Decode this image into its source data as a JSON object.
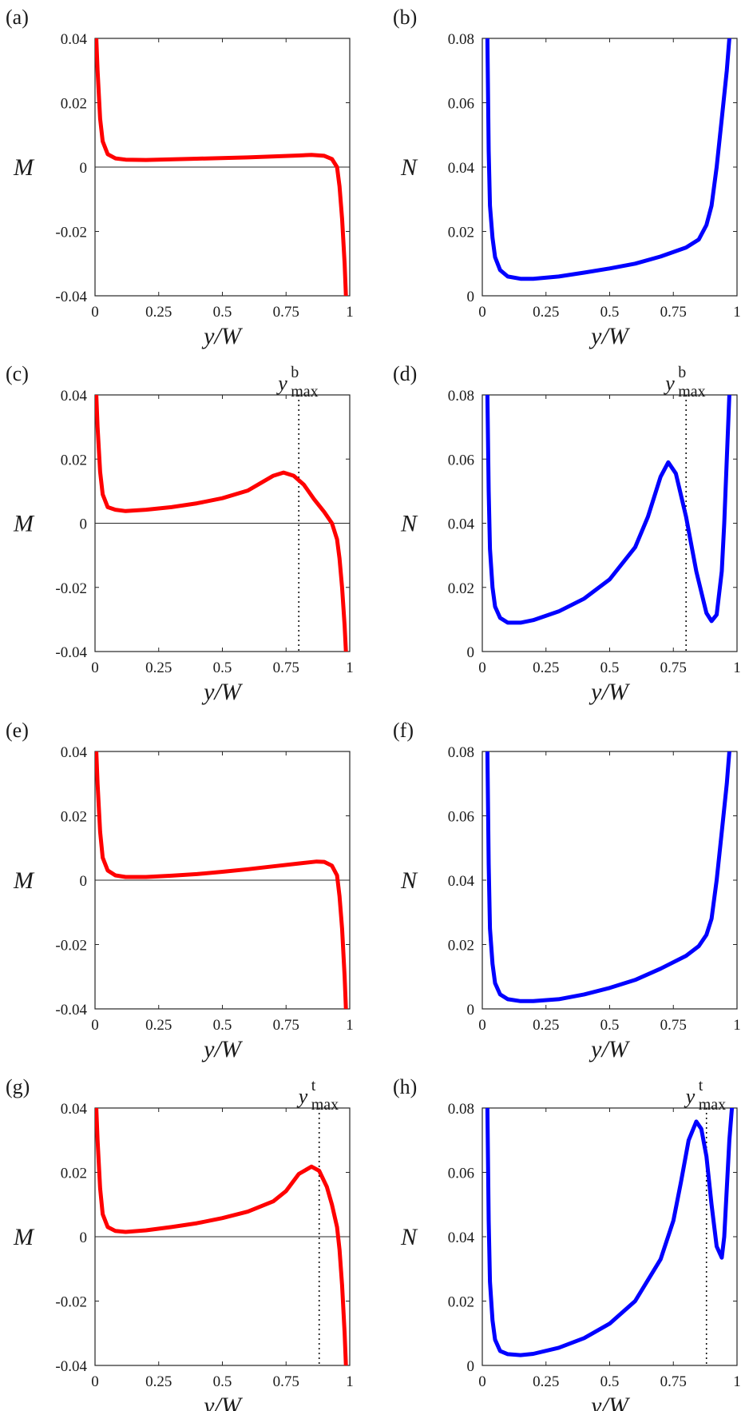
{
  "chart_data": [
    {
      "panel": "(a)",
      "type": "line",
      "xlabel": "y/W",
      "ylabel": "M",
      "xlim": [
        0,
        1
      ],
      "ylim": [
        -0.04,
        0.04
      ],
      "xticks": [
        "0",
        "0.25",
        "0.5",
        "0.75",
        "1"
      ],
      "yticks": [
        "-0.04",
        "-0.02",
        "0",
        "0.02",
        "0.04"
      ],
      "color": "#ff0000",
      "zero_line": true,
      "series": [
        {
          "name": "M",
          "x": [
            0.005,
            0.01,
            0.02,
            0.03,
            0.05,
            0.08,
            0.12,
            0.2,
            0.4,
            0.6,
            0.8,
            0.85,
            0.9,
            0.93,
            0.95,
            0.96,
            0.97,
            0.98,
            0.985
          ],
          "y": [
            0.04,
            0.03,
            0.015,
            0.008,
            0.004,
            0.0027,
            0.0023,
            0.0022,
            0.0026,
            0.003,
            0.0036,
            0.0038,
            0.0035,
            0.0025,
            0.0,
            -0.006,
            -0.016,
            -0.03,
            -0.04
          ]
        }
      ]
    },
    {
      "panel": "(b)",
      "type": "line",
      "xlabel": "y/W",
      "ylabel": "N",
      "xlim": [
        0,
        1
      ],
      "ylim": [
        0,
        0.08
      ],
      "xticks": [
        "0",
        "0.25",
        "0.5",
        "0.75",
        "1"
      ],
      "yticks": [
        "0",
        "0.02",
        "0.04",
        "0.06",
        "0.08"
      ],
      "color": "#0000ff",
      "zero_line": false,
      "series": [
        {
          "name": "N",
          "x": [
            0.02,
            0.025,
            0.03,
            0.04,
            0.05,
            0.07,
            0.1,
            0.15,
            0.2,
            0.3,
            0.4,
            0.5,
            0.6,
            0.7,
            0.8,
            0.85,
            0.88,
            0.9,
            0.92,
            0.94,
            0.96,
            0.97
          ],
          "y": [
            0.08,
            0.045,
            0.028,
            0.018,
            0.012,
            0.008,
            0.006,
            0.0053,
            0.0053,
            0.006,
            0.0072,
            0.0085,
            0.01,
            0.0122,
            0.015,
            0.0175,
            0.022,
            0.028,
            0.04,
            0.055,
            0.07,
            0.08
          ]
        }
      ]
    },
    {
      "panel": "(c)",
      "type": "line",
      "xlabel": "y/W",
      "ylabel": "M",
      "xlim": [
        0,
        1
      ],
      "ylim": [
        -0.04,
        0.04
      ],
      "xticks": [
        "0",
        "0.25",
        "0.5",
        "0.75",
        "1"
      ],
      "yticks": [
        "-0.04",
        "-0.02",
        "0",
        "0.02",
        "0.04"
      ],
      "color": "#ff0000",
      "zero_line": true,
      "marker_x": 0.8,
      "marker_label": "y",
      "marker_sup": "b",
      "marker_sub": "max",
      "series": [
        {
          "name": "M",
          "x": [
            0.005,
            0.01,
            0.02,
            0.03,
            0.05,
            0.08,
            0.12,
            0.2,
            0.3,
            0.4,
            0.5,
            0.6,
            0.65,
            0.7,
            0.74,
            0.78,
            0.82,
            0.86,
            0.9,
            0.93,
            0.95,
            0.96,
            0.97,
            0.98,
            0.985
          ],
          "y": [
            0.04,
            0.03,
            0.016,
            0.009,
            0.005,
            0.0042,
            0.0038,
            0.0042,
            0.005,
            0.0062,
            0.0078,
            0.0102,
            0.0125,
            0.0148,
            0.0158,
            0.0148,
            0.012,
            0.0075,
            0.0035,
            0.0,
            -0.005,
            -0.011,
            -0.02,
            -0.032,
            -0.04
          ]
        }
      ]
    },
    {
      "panel": "(d)",
      "type": "line",
      "xlabel": "y/W",
      "ylabel": "N",
      "xlim": [
        0,
        1
      ],
      "ylim": [
        0,
        0.08
      ],
      "xticks": [
        "0",
        "0.25",
        "0.5",
        "0.75",
        "1"
      ],
      "yticks": [
        "0",
        "0.02",
        "0.04",
        "0.06",
        "0.08"
      ],
      "color": "#0000ff",
      "zero_line": false,
      "marker_x": 0.8,
      "marker_label": "y",
      "marker_sup": "b",
      "marker_sub": "max",
      "series": [
        {
          "name": "N",
          "x": [
            0.02,
            0.025,
            0.03,
            0.04,
            0.05,
            0.07,
            0.1,
            0.15,
            0.2,
            0.3,
            0.4,
            0.5,
            0.6,
            0.65,
            0.7,
            0.73,
            0.76,
            0.8,
            0.84,
            0.88,
            0.9,
            0.92,
            0.94,
            0.95,
            0.96,
            0.97
          ],
          "y": [
            0.08,
            0.05,
            0.032,
            0.02,
            0.014,
            0.0105,
            0.009,
            0.009,
            0.0098,
            0.0125,
            0.0165,
            0.0225,
            0.0325,
            0.042,
            0.0545,
            0.059,
            0.0555,
            0.042,
            0.025,
            0.012,
            0.0095,
            0.0115,
            0.025,
            0.04,
            0.06,
            0.08
          ]
        }
      ]
    },
    {
      "panel": "(e)",
      "type": "line",
      "xlabel": "y/W",
      "ylabel": "M",
      "xlim": [
        0,
        1
      ],
      "ylim": [
        -0.04,
        0.04
      ],
      "xticks": [
        "0",
        "0.25",
        "0.5",
        "0.75",
        "1"
      ],
      "yticks": [
        "-0.04",
        "-0.02",
        "0",
        "0.02",
        "0.04"
      ],
      "color": "#ff0000",
      "zero_line": true,
      "series": [
        {
          "name": "M",
          "x": [
            0.005,
            0.01,
            0.02,
            0.03,
            0.05,
            0.08,
            0.12,
            0.2,
            0.3,
            0.4,
            0.5,
            0.6,
            0.7,
            0.8,
            0.87,
            0.9,
            0.93,
            0.95,
            0.96,
            0.97,
            0.98,
            0.985
          ],
          "y": [
            0.04,
            0.03,
            0.015,
            0.007,
            0.003,
            0.0015,
            0.001,
            0.001,
            0.0014,
            0.0019,
            0.0026,
            0.0034,
            0.0043,
            0.0052,
            0.0058,
            0.0057,
            0.0045,
            0.0015,
            -0.005,
            -0.015,
            -0.03,
            -0.04
          ]
        }
      ]
    },
    {
      "panel": "(f)",
      "type": "line",
      "xlabel": "y/W",
      "ylabel": "N",
      "xlim": [
        0,
        1
      ],
      "ylim": [
        0,
        0.08
      ],
      "xticks": [
        "0",
        "0.25",
        "0.5",
        "0.75",
        "1"
      ],
      "yticks": [
        "0",
        "0.02",
        "0.04",
        "0.06",
        "0.08"
      ],
      "color": "#0000ff",
      "zero_line": false,
      "series": [
        {
          "name": "N",
          "x": [
            0.02,
            0.025,
            0.03,
            0.04,
            0.05,
            0.07,
            0.1,
            0.15,
            0.2,
            0.3,
            0.4,
            0.5,
            0.6,
            0.7,
            0.8,
            0.85,
            0.88,
            0.9,
            0.92,
            0.94,
            0.96,
            0.97
          ],
          "y": [
            0.08,
            0.045,
            0.025,
            0.014,
            0.008,
            0.0045,
            0.003,
            0.0024,
            0.0024,
            0.003,
            0.0045,
            0.0065,
            0.009,
            0.0125,
            0.0165,
            0.0195,
            0.023,
            0.028,
            0.04,
            0.055,
            0.07,
            0.08
          ]
        }
      ]
    },
    {
      "panel": "(g)",
      "type": "line",
      "xlabel": "y/W",
      "ylabel": "M",
      "xlim": [
        0,
        1
      ],
      "ylim": [
        -0.04,
        0.04
      ],
      "xticks": [
        "0",
        "0.25",
        "0.5",
        "0.75",
        "1"
      ],
      "yticks": [
        "-0.04",
        "-0.02",
        "0",
        "0.02",
        "0.04"
      ],
      "color": "#ff0000",
      "zero_line": true,
      "marker_x": 0.88,
      "marker_label": "y",
      "marker_sup": "t",
      "marker_sub": "max",
      "series": [
        {
          "name": "M",
          "x": [
            0.005,
            0.01,
            0.02,
            0.03,
            0.05,
            0.08,
            0.12,
            0.2,
            0.3,
            0.4,
            0.5,
            0.6,
            0.7,
            0.75,
            0.8,
            0.85,
            0.88,
            0.91,
            0.93,
            0.95,
            0.96,
            0.97,
            0.98,
            0.985
          ],
          "y": [
            0.04,
            0.03,
            0.015,
            0.007,
            0.003,
            0.0018,
            0.0015,
            0.002,
            0.003,
            0.0042,
            0.0058,
            0.0078,
            0.011,
            0.0142,
            0.0195,
            0.0218,
            0.0205,
            0.0155,
            0.01,
            0.003,
            -0.004,
            -0.015,
            -0.03,
            -0.04
          ]
        }
      ]
    },
    {
      "panel": "(h)",
      "type": "line",
      "xlabel": "y/W",
      "ylabel": "N",
      "xlim": [
        0,
        1
      ],
      "ylim": [
        0,
        0.08
      ],
      "xticks": [
        "0",
        "0.25",
        "0.5",
        "0.75",
        "1"
      ],
      "yticks": [
        "0",
        "0.02",
        "0.04",
        "0.06",
        "0.08"
      ],
      "color": "#0000ff",
      "zero_line": false,
      "marker_x": 0.88,
      "marker_label": "y",
      "marker_sup": "t",
      "marker_sub": "max",
      "series": [
        {
          "name": "N",
          "x": [
            0.02,
            0.025,
            0.03,
            0.04,
            0.05,
            0.07,
            0.1,
            0.15,
            0.2,
            0.3,
            0.4,
            0.5,
            0.6,
            0.7,
            0.75,
            0.78,
            0.81,
            0.84,
            0.86,
            0.88,
            0.9,
            0.92,
            0.94,
            0.95,
            0.96,
            0.97,
            0.98
          ],
          "y": [
            0.08,
            0.045,
            0.026,
            0.014,
            0.008,
            0.0045,
            0.0035,
            0.0032,
            0.0036,
            0.0055,
            0.0085,
            0.013,
            0.02,
            0.033,
            0.045,
            0.057,
            0.07,
            0.0758,
            0.0735,
            0.065,
            0.05,
            0.037,
            0.0335,
            0.04,
            0.055,
            0.07,
            0.08
          ]
        }
      ]
    }
  ]
}
